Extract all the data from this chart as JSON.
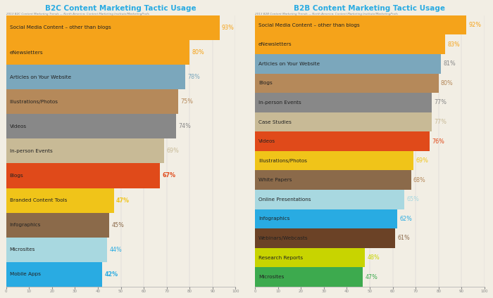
{
  "b2c": {
    "title": "B2C Content Marketing Tactic Usage",
    "categories": [
      "Social Media Content – other than blogs",
      "eNewsletters",
      "Articles on Your Website",
      "Illustrations/Photos",
      "Videos",
      "In-person Events",
      "Blogs",
      "Branded Content Tools",
      "Infographics",
      "Microsites",
      "Mobile Apps"
    ],
    "values": [
      93,
      80,
      78,
      75,
      74,
      69,
      67,
      47,
      45,
      44,
      42
    ],
    "bar_colors": [
      "#F5A31A",
      "#F5A31A",
      "#7BA7BC",
      "#B5895A",
      "#888888",
      "#C8BA96",
      "#E04A1A",
      "#F0C419",
      "#8B6A4A",
      "#A8D8E0",
      "#29ABE2"
    ],
    "label_colors": [
      "#F5A31A",
      "#F5A31A",
      "#7BA7BC",
      "#B5895A",
      "#888888",
      "#C8BA96",
      "#E04A1A",
      "#F0C419",
      "#8B6A4A",
      "#29ABE2",
      "#29ABE2"
    ],
    "bar_label_bold": [
      false,
      false,
      false,
      false,
      false,
      false,
      true,
      true,
      false,
      false,
      true
    ],
    "cat_label_dark": [
      false,
      false,
      false,
      false,
      false,
      false,
      true,
      true,
      false,
      false,
      true
    ],
    "source": "2013 B2C Content Marketing Trends — North America: Content Marketing Institute/MarketingProfs"
  },
  "b2b": {
    "title": "B2B Content Marketing Tactic Usage",
    "categories": [
      "Social Media Content – other than blogs",
      "eNewsletters",
      "Articles on Your Website",
      "Blogs",
      "In-person Events",
      "Case Studies",
      "Videos",
      "Illustrations/Photos",
      "White Papers",
      "Online Presentations",
      "Infographics",
      "Webinars/Webcasts",
      "Research Reports",
      "Microsites"
    ],
    "values": [
      92,
      83,
      81,
      80,
      77,
      77,
      76,
      69,
      68,
      65,
      62,
      61,
      48,
      47
    ],
    "bar_colors": [
      "#F5A31A",
      "#F5A31A",
      "#7BA7BC",
      "#B5895A",
      "#888888",
      "#C8BA96",
      "#E04A1A",
      "#F0C419",
      "#8B6A4A",
      "#A8D8E0",
      "#29ABE2",
      "#6B4226",
      "#C8D400",
      "#3DAA4E"
    ],
    "label_colors": [
      "#F5A31A",
      "#F5A31A",
      "#888888",
      "#B5895A",
      "#888888",
      "#C8BA96",
      "#E04A1A",
      "#F0C419",
      "#B5895A",
      "#A8D8E0",
      "#29ABE2",
      "#8B6A4A",
      "#C8D400",
      "#3DAA4E"
    ],
    "bar_label_bold": [
      false,
      false,
      false,
      false,
      false,
      false,
      false,
      false,
      false,
      false,
      false,
      false,
      false,
      false
    ],
    "cat_label_dark": [
      false,
      false,
      false,
      false,
      false,
      false,
      true,
      true,
      false,
      false,
      true,
      false,
      true,
      true
    ],
    "source": "2013 B2B Content Marketing Trends — North America: Content Marketing Institute/MarketingProfs"
  },
  "background_color": "#F2EEE4",
  "title_color": "#29ABE2",
  "xlim": [
    0,
    100
  ]
}
